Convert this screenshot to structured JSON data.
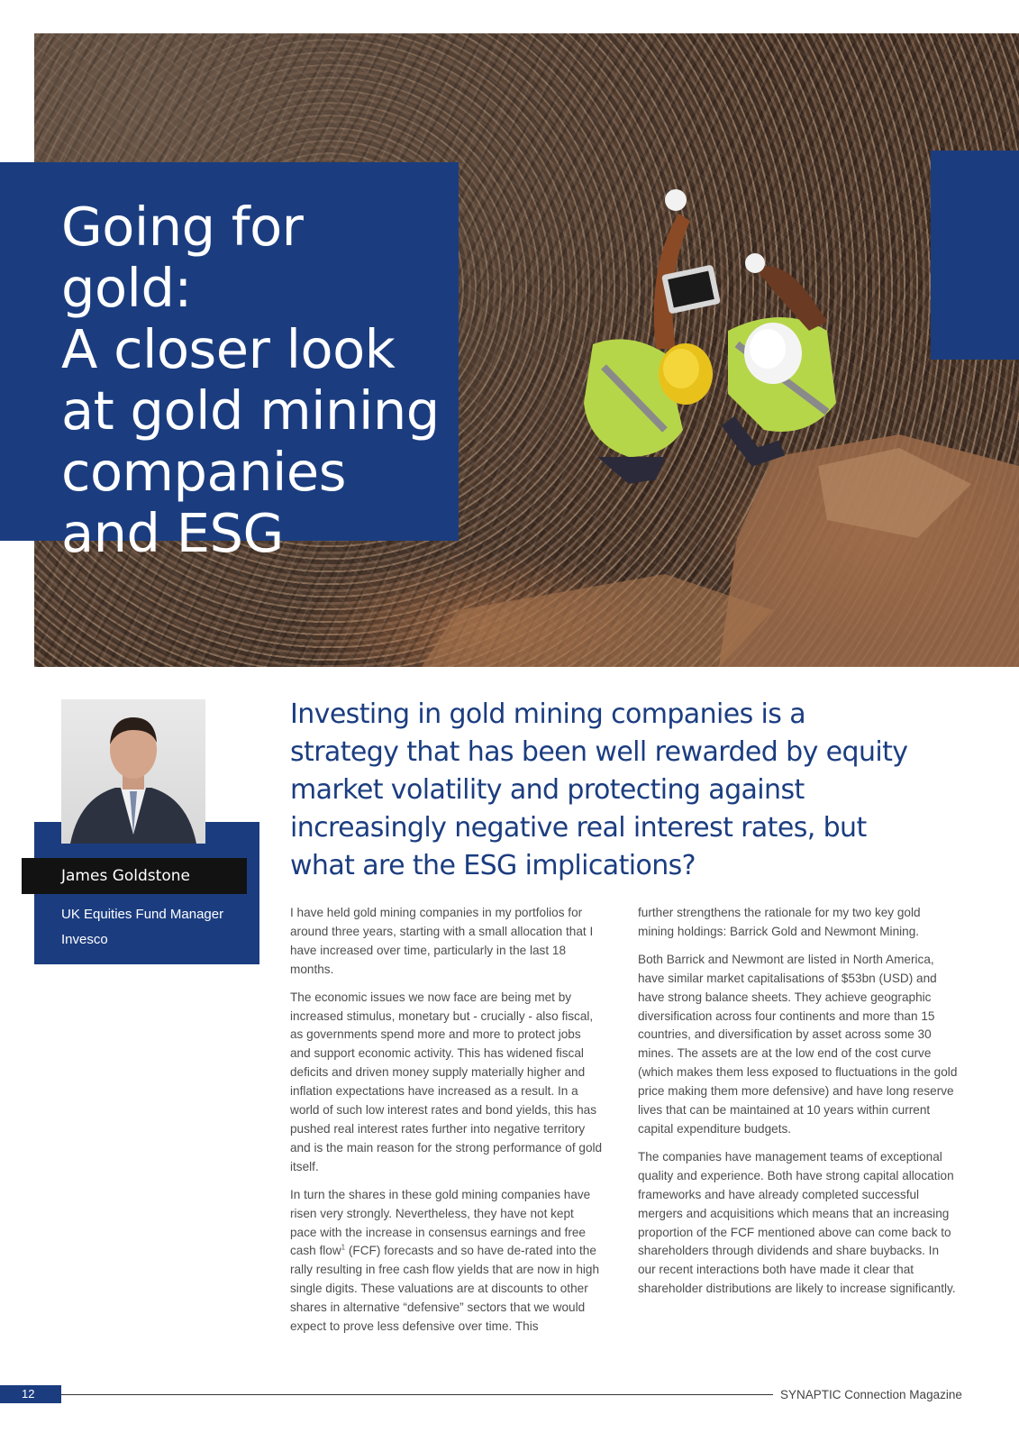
{
  "hero": {
    "title_lines": [
      "Going for gold:",
      "A closer look",
      "at gold mining",
      "companies",
      "and ESG"
    ],
    "photo": "gold-mine-workers-photo"
  },
  "author": {
    "name": "James Goldstone",
    "role": "UK Equities Fund Manager",
    "company": "Invesco"
  },
  "standfirst": "Investing in gold mining companies is a strategy that has been well rewarded by equity market volatility and protecting against increasingly negative real interest rates, but what are the ESG implications?",
  "body": {
    "col1": {
      "p1": "I have held gold mining companies in my portfolios for around three years, starting with a small allocation that I have increased over time, particularly in the last 18 months.",
      "p2": "The economic issues we now face are being met by increased stimulus, monetary but - crucially - also fiscal, as governments spend more and more to protect jobs and support economic activity. This has widened fiscal deficits and driven money supply materially higher and inflation expectations have increased as a result. In a world of such low interest rates and bond yields, this has pushed real interest rates further into negative territory and is the main reason for the strong performance of gold itself.",
      "p3a": "In turn the shares in these gold mining companies have risen very strongly. Nevertheless, they have not kept pace with the increase in consensus earnings and free cash flow",
      "p3_sup": "1",
      "p3b": " (FCF) forecasts and so have de-rated into the rally resulting in free cash flow yields that are now in high single digits. These valuations are at discounts to other shares in alternative “defensive” sectors that we would expect to prove less defensive over time. This"
    },
    "col2": {
      "p1": "further strengthens the rationale for my two key gold mining holdings: Barrick Gold and Newmont Mining.",
      "p2": "Both Barrick and Newmont are listed in North America, have similar market capitalisations of $53bn (USD) and have strong balance sheets. They achieve geographic diversification across four continents and more than 15 countries, and diversification by asset across some 30 mines. The assets are at the low end of the cost curve (which makes them less exposed to fluctuations in the gold price making them more defensive) and have long reserve lives that can be maintained at 10 years within current capital expenditure budgets.",
      "p3": "The companies have management teams of exceptional quality and experience. Both have strong capital allocation frameworks and have already completed successful mergers and acquisitions which means that an increasing proportion of the FCF mentioned above can come back to shareholders through dividends and share buybacks. In our recent interactions both have made it clear that shareholder distributions are likely to increase significantly."
    }
  },
  "footer": {
    "page_number": "12",
    "publication": "SYNAPTIC Connection Magazine"
  },
  "colors": {
    "brand_blue": "#1b3d80",
    "name_bar": "#121212",
    "body_text": "#4d4d4d"
  }
}
